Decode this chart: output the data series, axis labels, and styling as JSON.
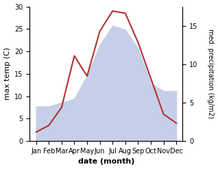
{
  "months": [
    "Jan",
    "Feb",
    "Mar",
    "Apr",
    "May",
    "Jun",
    "Jul",
    "Aug",
    "Sep",
    "Oct",
    "Nov",
    "Dec"
  ],
  "month_positions": [
    0,
    1,
    2,
    3,
    4,
    5,
    6,
    7,
    8,
    9,
    10,
    11
  ],
  "temperature": [
    2.0,
    3.5,
    7.5,
    19.0,
    14.5,
    24.5,
    29.0,
    28.5,
    22.0,
    14.0,
    6.0,
    4.0
  ],
  "precipitation": [
    4.5,
    4.5,
    5.0,
    5.5,
    8.5,
    12.5,
    15.0,
    14.5,
    12.0,
    7.5,
    6.5,
    6.5
  ],
  "temp_color": "#b03030",
  "precip_color_fill": "#c5cfe8",
  "temp_ylim": [
    0,
    30
  ],
  "precip_ylim": [
    0,
    17.5
  ],
  "temp_yticks": [
    0,
    5,
    10,
    15,
    20,
    25,
    30
  ],
  "precip_yticks": [
    0,
    5,
    10,
    15
  ],
  "xlabel": "date (month)",
  "ylabel_left": "max temp (C)",
  "ylabel_right": "med. precipitation (kg/m2)",
  "bg_color": "#ffffff",
  "line_width": 1.5,
  "figsize": [
    3.18,
    2.47
  ],
  "dpi": 100
}
